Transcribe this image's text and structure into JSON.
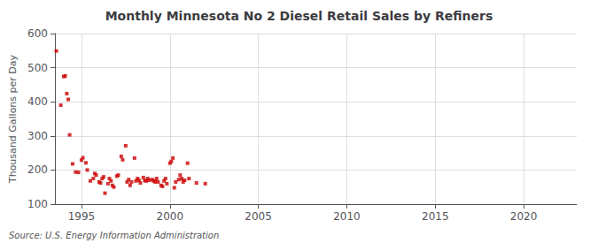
{
  "chart_data": {
    "type": "scatter",
    "title": "Monthly Minnesota No 2 Diesel Retail Sales by Refiners",
    "ylabel": "Thousand Gallons per Day",
    "annotations": [
      "Source: U.S. Energy Information Administration"
    ],
    "color": "#cc0000",
    "marker": "square",
    "xlim": [
      1993.5,
      2023
    ],
    "ylim": [
      100,
      600
    ],
    "xticks": [
      1995,
      2000,
      2005,
      2010,
      2015,
      2020
    ],
    "yticks": [
      100,
      200,
      300,
      400,
      500,
      600
    ],
    "grid": true,
    "x": [
      1993.58,
      1993.83,
      1994.0,
      1994.08,
      1994.17,
      1994.25,
      1994.33,
      1994.5,
      1994.67,
      1994.83,
      1995.0,
      1995.08,
      1995.25,
      1995.33,
      1995.5,
      1995.67,
      1995.75,
      1995.83,
      1996.0,
      1996.08,
      1996.17,
      1996.25,
      1996.33,
      1996.5,
      1996.58,
      1996.67,
      1996.75,
      1996.83,
      1997.0,
      1997.08,
      1997.25,
      1997.33,
      1997.5,
      1997.58,
      1997.67,
      1997.75,
      1997.83,
      1998.0,
      1998.08,
      1998.17,
      1998.25,
      1998.33,
      1998.5,
      1998.58,
      1998.67,
      1998.75,
      1998.83,
      1999.0,
      1999.08,
      1999.17,
      1999.25,
      1999.33,
      1999.5,
      1999.58,
      1999.67,
      1999.75,
      1999.83,
      2000.0,
      2000.08,
      2000.17,
      2000.25,
      2000.33,
      2000.5,
      2000.58,
      2000.67,
      2000.75,
      2000.83,
      2001.0,
      2001.08,
      2001.5,
      2002.0
    ],
    "values": [
      549,
      390,
      474,
      476,
      424,
      407,
      303,
      218,
      194,
      193,
      229,
      236,
      221,
      200,
      168,
      175,
      190,
      185,
      165,
      162,
      175,
      180,
      132,
      160,
      175,
      168,
      155,
      150,
      182,
      185,
      240,
      230,
      271,
      165,
      172,
      155,
      165,
      235,
      168,
      175,
      170,
      162,
      178,
      169,
      168,
      175,
      170,
      172,
      168,
      165,
      175,
      165,
      155,
      152,
      168,
      175,
      160,
      220,
      225,
      235,
      148,
      165,
      172,
      185,
      175,
      165,
      170,
      220,
      175,
      162,
      160
    ]
  }
}
